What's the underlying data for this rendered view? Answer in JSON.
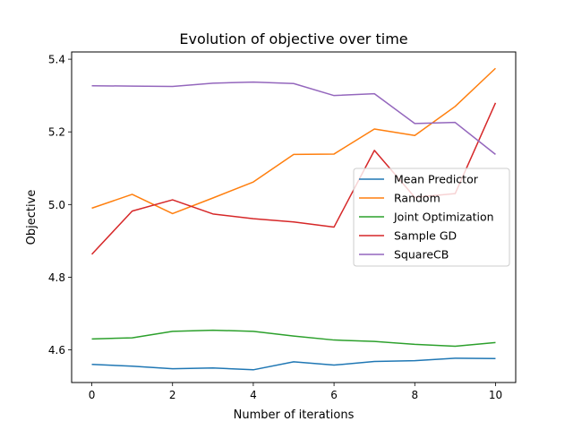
{
  "chart_data": {
    "type": "line",
    "title": "Evolution of objective over time",
    "xlabel": "Number of iterations",
    "ylabel": "Objective",
    "x": [
      0,
      1,
      2,
      3,
      4,
      5,
      6,
      7,
      8,
      9,
      10
    ],
    "xlim": [
      -0.5,
      10.5
    ],
    "ylim": [
      4.51,
      5.42
    ],
    "xticks": [
      0,
      2,
      4,
      6,
      8,
      10
    ],
    "yticks": [
      4.6,
      4.8,
      5.0,
      5.2,
      5.4
    ],
    "xtick_labels": [
      "0",
      "2",
      "4",
      "6",
      "8",
      "10"
    ],
    "ytick_labels": [
      "4.6",
      "4.8",
      "5.0",
      "5.2",
      "5.4"
    ],
    "grid": false,
    "legend_position": "center-right",
    "series": [
      {
        "name": "Mean Predictor",
        "color": "#1f77b4",
        "values": [
          4.56,
          4.555,
          4.548,
          4.55,
          4.545,
          4.567,
          4.558,
          4.568,
          4.57,
          4.577,
          4.576
        ]
      },
      {
        "name": "Random",
        "color": "#ff7f0e",
        "values": [
          4.99,
          5.028,
          4.975,
          5.018,
          5.062,
          5.138,
          5.139,
          5.208,
          5.19,
          5.27,
          5.375
        ]
      },
      {
        "name": "Joint Optimization",
        "color": "#2ca02c",
        "values": [
          4.63,
          4.633,
          4.651,
          4.654,
          4.651,
          4.638,
          4.627,
          4.623,
          4.615,
          4.61,
          4.62
        ]
      },
      {
        "name": "Sample GD",
        "color": "#d62728",
        "values": [
          4.863,
          4.982,
          5.013,
          4.974,
          4.961,
          4.952,
          4.938,
          5.149,
          5.02,
          5.03,
          5.28
        ]
      },
      {
        "name": "SquareCB",
        "color": "#9467bd",
        "values": [
          5.327,
          5.326,
          5.325,
          5.334,
          5.337,
          5.333,
          5.3,
          5.305,
          5.223,
          5.226,
          5.138
        ]
      }
    ]
  }
}
